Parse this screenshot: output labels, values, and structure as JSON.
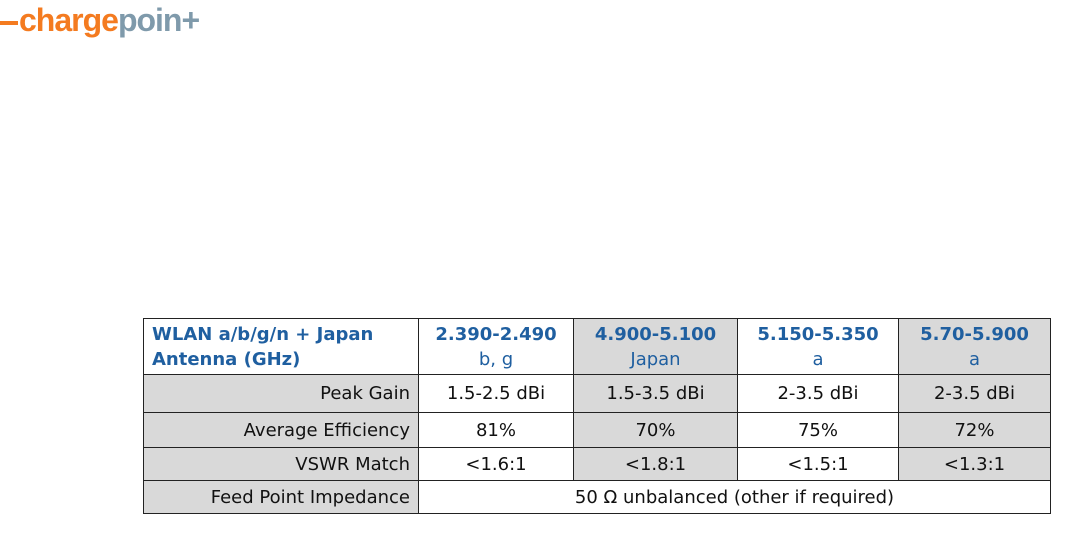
{
  "logo": {
    "part1": "charge",
    "part2": "poin+"
  },
  "table": {
    "header": [
      [
        "WLAN a/b/g/n + Japan",
        "Antenna (GHz)"
      ],
      [
        "2.390-2.490",
        "b, g"
      ],
      [
        "4.900-5.100",
        "Japan"
      ],
      [
        "5.150-5.350",
        "a"
      ],
      [
        "5.70-5.900",
        "a"
      ]
    ],
    "rows": [
      [
        "Peak Gain",
        "1.5-2.5 dBi",
        "1.5-3.5 dBi",
        "2-3.5 dBi",
        "2-3.5 dBi"
      ],
      [
        "Average Efficiency",
        "81%",
        "70%",
        "75%",
        "72%"
      ],
      [
        "VSWR Match",
        "<1.6:1",
        "<1.8:1",
        "<1.5:1",
        "<1.3:1"
      ],
      [
        "Feed Point Impedance",
        "50 Ω unbalanced (other if required)"
      ]
    ]
  }
}
